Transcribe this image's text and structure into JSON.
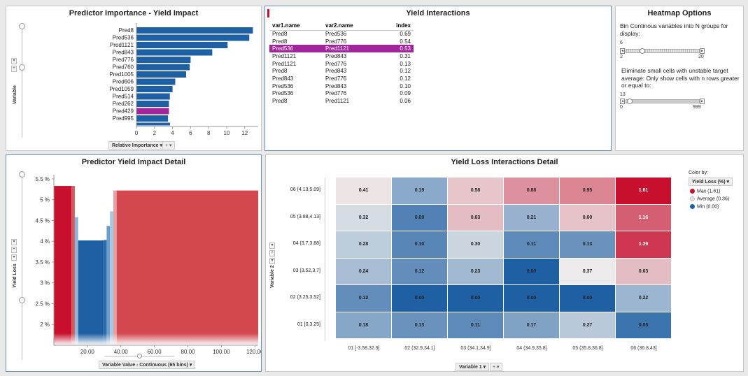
{
  "importance": {
    "title": "Predictor Importance - Yield Impact",
    "axis_label": "Variable",
    "x_pill": "Relative Importance",
    "x_ticks": [
      "0",
      "2",
      "4",
      "6",
      "8",
      "10",
      "12"
    ]
  },
  "interactions": {
    "title": "Yield Interactions",
    "columns": [
      "var1.name",
      "var2.name",
      "index"
    ],
    "rows": [
      [
        "Pred8",
        "Pred536",
        "0.69"
      ],
      [
        "Pred8",
        "Pred776",
        "0.54"
      ],
      [
        "Pred536",
        "Pred1121",
        "0.53"
      ],
      [
        "Pred1121",
        "Pred843",
        "0.31"
      ],
      [
        "Pred1121",
        "Pred776",
        "0.13"
      ],
      [
        "Pred8",
        "Pred843",
        "0.12"
      ],
      [
        "Pred843",
        "Pred776",
        "0.12"
      ],
      [
        "Pred536",
        "Pred843",
        "0.10"
      ],
      [
        "Pred536",
        "Pred776",
        "0.09"
      ],
      [
        "Pred8",
        "Pred1121",
        "0.06"
      ]
    ],
    "highlight_row": 2
  },
  "options": {
    "title": "Heatmap Options",
    "bin_text": "Bin Continous variables into N groups for display:",
    "bin_value": "6",
    "bin_min": "2",
    "bin_max": "20",
    "cells_text": "Eliminate small cells with unstable target average: Only show cells with n rows greater or equal to:",
    "cells_value": "13",
    "cells_min": "0",
    "cells_max": "999"
  },
  "detail": {
    "title": "Predictor Yield Impact Detail",
    "axis_label": "Yield Loss",
    "x_pill": "Variable Value - Continuous (65 bins)",
    "y_ticks": [
      "5.5 %",
      "5 %",
      "4.5 %",
      "4 %",
      "3.5 %",
      "3 %",
      "2.5 %",
      "2 %"
    ],
    "x_ticks": [
      "20.00",
      "40.00",
      "60.00",
      "80.00",
      "100.00",
      "120.00"
    ]
  },
  "heatmap": {
    "title": "Yield Loss Interactions Detail",
    "y_axis_label": "Variable 2",
    "x_pill": "Variable 1",
    "color_by_label": "Color by:",
    "color_pill": "Yield Loss (%)",
    "legend": [
      "Max (1.61)",
      "Average (0.36)",
      "Min (0.00)"
    ],
    "legend_colors": [
      "#c8102e",
      "#e3e3e3",
      "#1f5fa3"
    ],
    "x_categories": [
      "01 [-3.58,32.9]",
      "02 (32.9,34.1]",
      "03 (34.1,34.9]",
      "04 (34.9,35.8]",
      "05 (35.8,36.8]",
      "06 (36.8,43]"
    ],
    "y_categories": [
      "06 (4.13,5.09]",
      "05 (3.88,4.13]",
      "04 (3.7,3.88]",
      "03 (3.52,3.7]",
      "02 (3.25,3.52]",
      "01 [0,3.25]"
    ]
  },
  "chart_data": [
    {
      "type": "bar",
      "title": "Predictor Importance - Yield Impact",
      "categories": [
        "Pred8",
        "Pred536",
        "Pred1121",
        "Pred843",
        "Pred776",
        "Pred760",
        "Pred1005",
        "Pred606",
        "Pred1059",
        "Pred514",
        "Pred262",
        "Pred429",
        "Pred995"
      ],
      "values": [
        12.9,
        12.5,
        10.1,
        8.4,
        6.0,
        5.9,
        5.5,
        4.3,
        4.0,
        3.7,
        3.6,
        3.6,
        3.5
      ],
      "highlight": "Pred429",
      "xlabel": "Relative Importance",
      "ylabel": "Variable",
      "xlim": [
        0,
        13.5
      ]
    },
    {
      "type": "bar",
      "title": "Predictor Yield Impact Detail",
      "xlabel": "Variable Value - Continuous (65 bins)",
      "ylabel": "Yield Loss",
      "ylim": [
        1.5,
        5.6
      ],
      "xlim": [
        0,
        122
      ],
      "bins": [
        {
          "x0": 0,
          "x1": 10.5,
          "value": 5.33,
          "color": "#c8102e"
        },
        {
          "x0": 10.5,
          "x1": 12.5,
          "value": 5.33,
          "color": "#d45a5f"
        },
        {
          "x0": 12.5,
          "x1": 14.5,
          "value": 4.58,
          "color": "#8fb6d8"
        },
        {
          "x0": 14.5,
          "x1": 29.5,
          "value": 4.02,
          "color": "#1f5fa3"
        },
        {
          "x0": 29.5,
          "x1": 31.5,
          "value": 4.03,
          "color": "#2c6aab"
        },
        {
          "x0": 31.5,
          "x1": 33.5,
          "value": 4.37,
          "color": "#6a9ecb"
        },
        {
          "x0": 33.5,
          "x1": 35.5,
          "value": 4.72,
          "color": "#a9c6e0"
        },
        {
          "x0": 35.5,
          "x1": 37.5,
          "value": 5.22,
          "color": "#e3a0a3"
        },
        {
          "x0": 37.5,
          "x1": 122,
          "value": 5.22,
          "color": "#d3474f"
        }
      ]
    },
    {
      "type": "heatmap",
      "title": "Yield Loss Interactions Detail",
      "xlabel": "Variable 1",
      "ylabel": "Variable 2",
      "x": [
        "01 [-3.58,32.9]",
        "02 (32.9,34.1]",
        "03 (34.1,34.9]",
        "04 (34.9,35.8]",
        "05 (35.8,36.8]",
        "06 (36.8,43]"
      ],
      "y": [
        "06 (4.13,5.09]",
        "05 (3.88,4.13]",
        "04 (3.7,3.88]",
        "03 (3.52,3.7]",
        "02 (3.25,3.52]",
        "01 [0,3.25]"
      ],
      "values": [
        [
          0.41,
          0.19,
          0.58,
          0.88,
          0.95,
          1.61
        ],
        [
          0.32,
          0.09,
          0.63,
          0.21,
          0.6,
          1.16
        ],
        [
          0.28,
          0.1,
          0.3,
          0.11,
          0.13,
          1.39
        ],
        [
          0.24,
          0.12,
          0.23,
          0.0,
          0.37,
          0.63
        ],
        [
          0.12,
          0.0,
          0.0,
          0.0,
          0.0,
          0.22
        ],
        [
          0.18,
          0.13,
          0.11,
          0.17,
          0.27,
          0.05
        ]
      ],
      "labels": [
        [
          "0.41",
          "0.19",
          "0.58",
          "0.88",
          "0.95",
          "1.61"
        ],
        [
          "0.32",
          "0.09",
          "0.63",
          "0.21",
          "0.60",
          "1.16"
        ],
        [
          "0.28",
          "0.10",
          "0.30",
          "0.11",
          "0.13",
          "1.39"
        ],
        [
          "0.24",
          "0.12",
          "0.23",
          "0.00",
          "0.37",
          "0.63"
        ],
        [
          "0.12",
          "0.00",
          "0.00",
          "0.00",
          "0.00",
          "0.22"
        ],
        [
          "0.18",
          "0.13",
          "0.11",
          "0.17",
          "0.27",
          "0.05"
        ]
      ],
      "scale": {
        "min": 0.0,
        "avg": 0.36,
        "max": 1.61
      }
    }
  ]
}
